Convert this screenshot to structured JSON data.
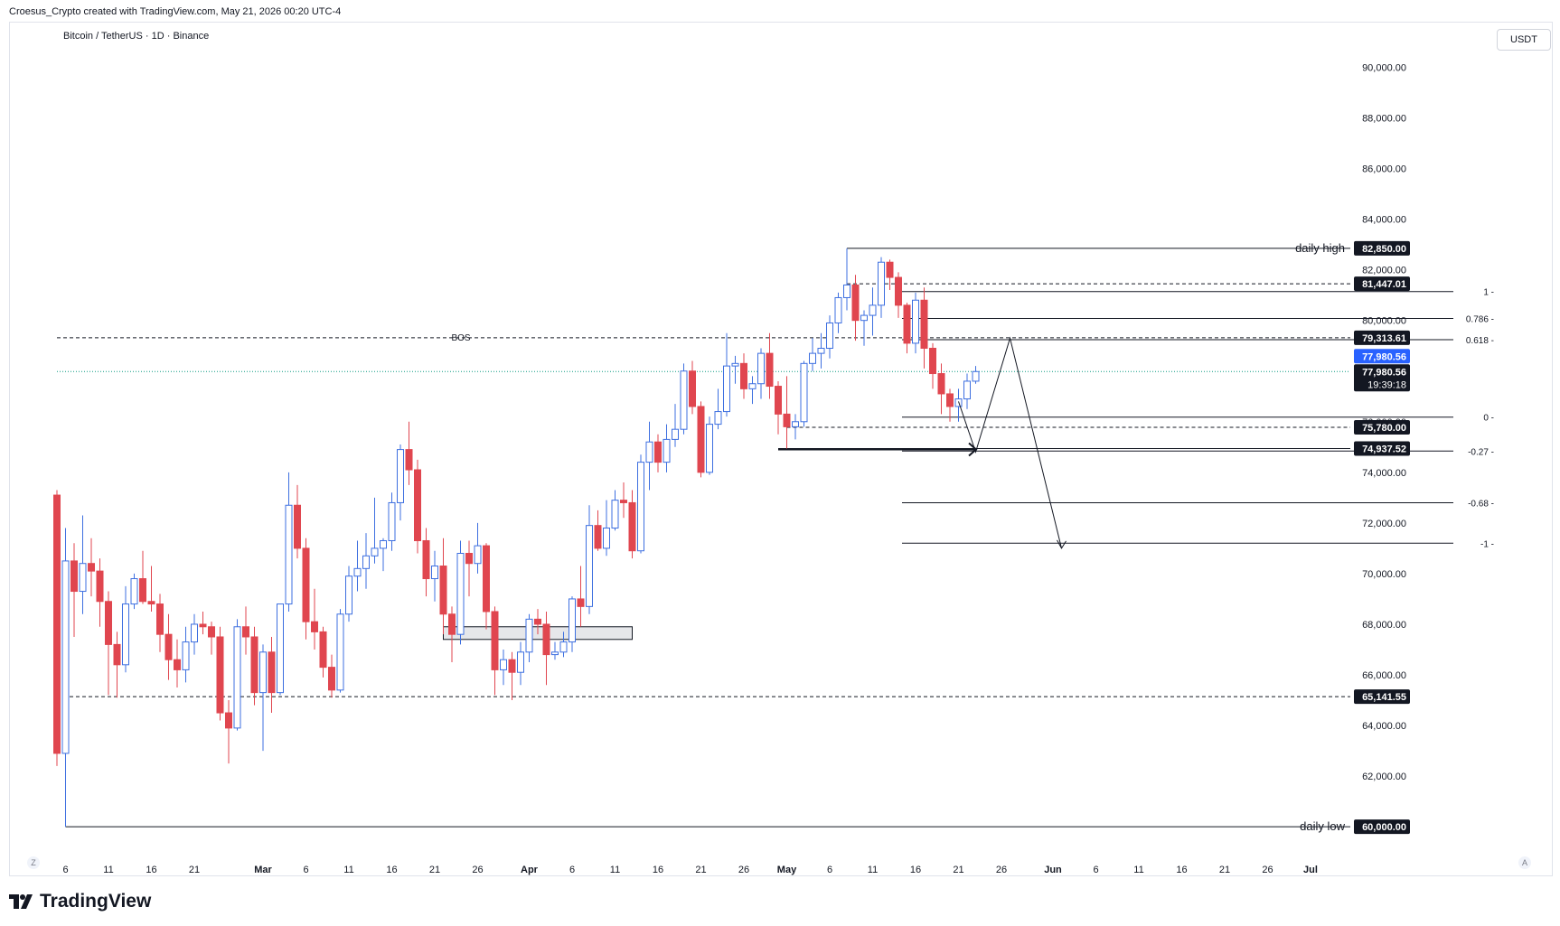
{
  "header": {
    "credit": "Croesus_Crypto created with TradingView.com, May 21, 2026 00:20 UTC-4",
    "symbol": "Bitcoin / TetherUS · 1D · Binance",
    "unit": "USDT"
  },
  "brand": {
    "name": "TradingView",
    "icon": "tradingview-logo-icon"
  },
  "corners": {
    "left": "Z",
    "right": "A"
  },
  "colors": {
    "up": "#3d6fe0",
    "down": "#e0464f",
    "ink": "#131722",
    "axis_text": "#131722",
    "dotted_current": "#089981",
    "price_tag_bg": "#131722",
    "current_tag_bg": "#2962ff"
  },
  "chart_data": {
    "type": "candlestick",
    "title": "Bitcoin / TetherUS · 1D · Binance",
    "ylim": [
      58400,
      91800
    ],
    "y_ticks": [
      62000,
      64000,
      66000,
      68000,
      70000,
      72000,
      74000,
      76000,
      78000,
      80000,
      82000,
      84000,
      86000,
      88000,
      90000
    ],
    "y_tick_labels": [
      "62,000.00",
      "64,000.00",
      "66,000.00",
      "68,000.00",
      "70,000.00",
      "72,000.00",
      "74,000.00",
      "76,000.00",
      "78,000.00",
      "80,000.00",
      "82,000.00",
      "84,000.00",
      "86,000.00",
      "88,000.00",
      "90,000.00"
    ],
    "x_start_date": "2026-02-05",
    "x_end_date": "2026-07-02",
    "x_ticks": [
      {
        "date": "2026-02-06",
        "label": "6",
        "bold": false
      },
      {
        "date": "2026-02-11",
        "label": "11",
        "bold": false
      },
      {
        "date": "2026-02-16",
        "label": "16",
        "bold": false
      },
      {
        "date": "2026-02-21",
        "label": "21",
        "bold": false
      },
      {
        "date": "2026-03-01",
        "label": "Mar",
        "bold": true
      },
      {
        "date": "2026-03-06",
        "label": "6",
        "bold": false
      },
      {
        "date": "2026-03-11",
        "label": "11",
        "bold": false
      },
      {
        "date": "2026-03-16",
        "label": "16",
        "bold": false
      },
      {
        "date": "2026-03-21",
        "label": "21",
        "bold": false
      },
      {
        "date": "2026-03-26",
        "label": "26",
        "bold": false
      },
      {
        "date": "2026-04-01",
        "label": "Apr",
        "bold": true
      },
      {
        "date": "2026-04-06",
        "label": "6",
        "bold": false
      },
      {
        "date": "2026-04-11",
        "label": "11",
        "bold": false
      },
      {
        "date": "2026-04-16",
        "label": "16",
        "bold": false
      },
      {
        "date": "2026-04-21",
        "label": "21",
        "bold": false
      },
      {
        "date": "2026-04-26",
        "label": "26",
        "bold": false
      },
      {
        "date": "2026-05-01",
        "label": "May",
        "bold": true
      },
      {
        "date": "2026-05-06",
        "label": "6",
        "bold": false
      },
      {
        "date": "2026-05-11",
        "label": "11",
        "bold": false
      },
      {
        "date": "2026-05-16",
        "label": "16",
        "bold": false
      },
      {
        "date": "2026-05-21",
        "label": "21",
        "bold": false
      },
      {
        "date": "2026-05-26",
        "label": "26",
        "bold": false
      },
      {
        "date": "2026-06-01",
        "label": "Jun",
        "bold": true
      },
      {
        "date": "2026-06-06",
        "label": "6",
        "bold": false
      },
      {
        "date": "2026-06-11",
        "label": "11",
        "bold": false
      },
      {
        "date": "2026-06-16",
        "label": "16",
        "bold": false
      },
      {
        "date": "2026-06-21",
        "label": "21",
        "bold": false
      },
      {
        "date": "2026-06-26",
        "label": "26",
        "bold": false
      },
      {
        "date": "2026-07-01",
        "label": "Jul",
        "bold": true
      }
    ],
    "candles": [
      {
        "d": "2026-02-05",
        "o": 73100,
        "h": 73300,
        "l": 62400,
        "c": 62900
      },
      {
        "d": "2026-02-06",
        "o": 62900,
        "h": 71800,
        "l": 60000,
        "c": 70500
      },
      {
        "d": "2026-02-07",
        "o": 70500,
        "h": 71200,
        "l": 67500,
        "c": 69300
      },
      {
        "d": "2026-02-08",
        "o": 69300,
        "h": 72300,
        "l": 68400,
        "c": 70400
      },
      {
        "d": "2026-02-09",
        "o": 70400,
        "h": 71400,
        "l": 69100,
        "c": 70100
      },
      {
        "d": "2026-02-10",
        "o": 70100,
        "h": 70600,
        "l": 67900,
        "c": 68900
      },
      {
        "d": "2026-02-11",
        "o": 68900,
        "h": 69300,
        "l": 65200,
        "c": 67200
      },
      {
        "d": "2026-02-12",
        "o": 67200,
        "h": 67700,
        "l": 65100,
        "c": 66400
      },
      {
        "d": "2026-02-13",
        "o": 66400,
        "h": 69500,
        "l": 66100,
        "c": 68800
      },
      {
        "d": "2026-02-14",
        "o": 68800,
        "h": 70000,
        "l": 68600,
        "c": 69800
      },
      {
        "d": "2026-02-15",
        "o": 69800,
        "h": 70900,
        "l": 68800,
        "c": 68900
      },
      {
        "d": "2026-02-16",
        "o": 68900,
        "h": 70300,
        "l": 68500,
        "c": 68800
      },
      {
        "d": "2026-02-17",
        "o": 68800,
        "h": 69200,
        "l": 66900,
        "c": 67600
      },
      {
        "d": "2026-02-18",
        "o": 67600,
        "h": 68400,
        "l": 65800,
        "c": 66600
      },
      {
        "d": "2026-02-19",
        "o": 66600,
        "h": 67400,
        "l": 65500,
        "c": 66200
      },
      {
        "d": "2026-02-20",
        "o": 66200,
        "h": 67900,
        "l": 65700,
        "c": 67300
      },
      {
        "d": "2026-02-21",
        "o": 67300,
        "h": 68400,
        "l": 66800,
        "c": 68000
      },
      {
        "d": "2026-02-22",
        "o": 68000,
        "h": 68500,
        "l": 67600,
        "c": 67900
      },
      {
        "d": "2026-02-23",
        "o": 67900,
        "h": 68100,
        "l": 66800,
        "c": 67500
      },
      {
        "d": "2026-02-24",
        "o": 67500,
        "h": 67900,
        "l": 64200,
        "c": 64500
      },
      {
        "d": "2026-02-25",
        "o": 64500,
        "h": 65000,
        "l": 62500,
        "c": 63900
      },
      {
        "d": "2026-02-26",
        "o": 63900,
        "h": 68200,
        "l": 63800,
        "c": 67900
      },
      {
        "d": "2026-02-27",
        "o": 67900,
        "h": 68700,
        "l": 66800,
        "c": 67500
      },
      {
        "d": "2026-02-28",
        "o": 67500,
        "h": 67900,
        "l": 64800,
        "c": 65300
      },
      {
        "d": "2026-03-01",
        "o": 65300,
        "h": 67200,
        "l": 63000,
        "c": 66900
      },
      {
        "d": "2026-03-02",
        "o": 66900,
        "h": 67500,
        "l": 64500,
        "c": 65300
      },
      {
        "d": "2026-03-03",
        "o": 65300,
        "h": 68800,
        "l": 65200,
        "c": 68800
      },
      {
        "d": "2026-03-04",
        "o": 68800,
        "h": 74000,
        "l": 68500,
        "c": 72700
      },
      {
        "d": "2026-03-05",
        "o": 72700,
        "h": 73500,
        "l": 70600,
        "c": 71000
      },
      {
        "d": "2026-03-06",
        "o": 71000,
        "h": 71400,
        "l": 67400,
        "c": 68100
      },
      {
        "d": "2026-03-07",
        "o": 68100,
        "h": 69400,
        "l": 67000,
        "c": 67700
      },
      {
        "d": "2026-03-08",
        "o": 67700,
        "h": 67900,
        "l": 65900,
        "c": 66300
      },
      {
        "d": "2026-03-09",
        "o": 66300,
        "h": 66800,
        "l": 65100,
        "c": 65400
      },
      {
        "d": "2026-03-10",
        "o": 65400,
        "h": 68600,
        "l": 65300,
        "c": 68400
      },
      {
        "d": "2026-03-11",
        "o": 68400,
        "h": 70300,
        "l": 68100,
        "c": 69900
      },
      {
        "d": "2026-03-12",
        "o": 69900,
        "h": 71300,
        "l": 69300,
        "c": 70200
      },
      {
        "d": "2026-03-13",
        "o": 70200,
        "h": 71600,
        "l": 69400,
        "c": 70700
      },
      {
        "d": "2026-03-14",
        "o": 70700,
        "h": 73000,
        "l": 70400,
        "c": 71000
      },
      {
        "d": "2026-03-15",
        "o": 71000,
        "h": 71400,
        "l": 70100,
        "c": 71300
      },
      {
        "d": "2026-03-16",
        "o": 71300,
        "h": 73200,
        "l": 70900,
        "c": 72800
      },
      {
        "d": "2026-03-17",
        "o": 72800,
        "h": 75100,
        "l": 72100,
        "c": 74900
      },
      {
        "d": "2026-03-18",
        "o": 74900,
        "h": 76000,
        "l": 73500,
        "c": 74100
      },
      {
        "d": "2026-03-19",
        "o": 74100,
        "h": 74500,
        "l": 70800,
        "c": 71300
      },
      {
        "d": "2026-03-20",
        "o": 71300,
        "h": 71800,
        "l": 69100,
        "c": 69800
      },
      {
        "d": "2026-03-21",
        "o": 69800,
        "h": 70900,
        "l": 68900,
        "c": 70300
      },
      {
        "d": "2026-03-22",
        "o": 70300,
        "h": 71400,
        "l": 67600,
        "c": 68400
      },
      {
        "d": "2026-03-23",
        "o": 68400,
        "h": 68700,
        "l": 66500,
        "c": 67600
      },
      {
        "d": "2026-03-24",
        "o": 67600,
        "h": 71300,
        "l": 67200,
        "c": 70800
      },
      {
        "d": "2026-03-25",
        "o": 70800,
        "h": 71300,
        "l": 69100,
        "c": 70400
      },
      {
        "d": "2026-03-26",
        "o": 70400,
        "h": 72000,
        "l": 70000,
        "c": 71100
      },
      {
        "d": "2026-03-27",
        "o": 71100,
        "h": 71200,
        "l": 67800,
        "c": 68500
      },
      {
        "d": "2026-03-28",
        "o": 68500,
        "h": 68700,
        "l": 65200,
        "c": 66200
      },
      {
        "d": "2026-03-29",
        "o": 66200,
        "h": 67000,
        "l": 65600,
        "c": 66600
      },
      {
        "d": "2026-03-30",
        "o": 66600,
        "h": 66900,
        "l": 65000,
        "c": 66100
      },
      {
        "d": "2026-03-31",
        "o": 66100,
        "h": 67300,
        "l": 65600,
        "c": 66900
      },
      {
        "d": "2026-04-01",
        "o": 66900,
        "h": 68400,
        "l": 66500,
        "c": 68200
      },
      {
        "d": "2026-04-02",
        "o": 68200,
        "h": 68600,
        "l": 67600,
        "c": 68000
      },
      {
        "d": "2026-04-03",
        "o": 68000,
        "h": 68500,
        "l": 65600,
        "c": 66800
      },
      {
        "d": "2026-04-04",
        "o": 66800,
        "h": 67300,
        "l": 66600,
        "c": 66900
      },
      {
        "d": "2026-04-05",
        "o": 66900,
        "h": 67700,
        "l": 66700,
        "c": 67300
      },
      {
        "d": "2026-04-06",
        "o": 67300,
        "h": 69100,
        "l": 66900,
        "c": 69000
      },
      {
        "d": "2026-04-07",
        "o": 69000,
        "h": 70300,
        "l": 67900,
        "c": 68700
      },
      {
        "d": "2026-04-08",
        "o": 68700,
        "h": 72700,
        "l": 68400,
        "c": 71900
      },
      {
        "d": "2026-04-09",
        "o": 71900,
        "h": 72500,
        "l": 70900,
        "c": 71000
      },
      {
        "d": "2026-04-10",
        "o": 71000,
        "h": 72900,
        "l": 70700,
        "c": 71800
      },
      {
        "d": "2026-04-11",
        "o": 71800,
        "h": 73300,
        "l": 71700,
        "c": 72900
      },
      {
        "d": "2026-04-12",
        "o": 72900,
        "h": 73600,
        "l": 72200,
        "c": 72800
      },
      {
        "d": "2026-04-13",
        "o": 72800,
        "h": 73300,
        "l": 70600,
        "c": 70900
      },
      {
        "d": "2026-04-14",
        "o": 70900,
        "h": 74700,
        "l": 70800,
        "c": 74400
      },
      {
        "d": "2026-04-15",
        "o": 74400,
        "h": 76000,
        "l": 73300,
        "c": 75200
      },
      {
        "d": "2026-04-16",
        "o": 75200,
        "h": 75500,
        "l": 74000,
        "c": 74400
      },
      {
        "d": "2026-04-17",
        "o": 74400,
        "h": 75900,
        "l": 74000,
        "c": 75300
      },
      {
        "d": "2026-04-18",
        "o": 75300,
        "h": 76700,
        "l": 75000,
        "c": 75700
      },
      {
        "d": "2026-04-19",
        "o": 75700,
        "h": 78300,
        "l": 75500,
        "c": 78000
      },
      {
        "d": "2026-04-20",
        "o": 78000,
        "h": 78400,
        "l": 76300,
        "c": 76600
      },
      {
        "d": "2026-04-21",
        "o": 76600,
        "h": 76800,
        "l": 73800,
        "c": 74000
      },
      {
        "d": "2026-04-22",
        "o": 74000,
        "h": 76200,
        "l": 73900,
        "c": 75900
      },
      {
        "d": "2026-04-23",
        "o": 75900,
        "h": 77300,
        "l": 75700,
        "c": 76400
      },
      {
        "d": "2026-04-24",
        "o": 76400,
        "h": 79500,
        "l": 76200,
        "c": 78200
      },
      {
        "d": "2026-04-25",
        "o": 78200,
        "h": 78600,
        "l": 77500,
        "c": 78300
      },
      {
        "d": "2026-04-26",
        "o": 78300,
        "h": 78700,
        "l": 76900,
        "c": 77300
      },
      {
        "d": "2026-04-27",
        "o": 77300,
        "h": 77800,
        "l": 76700,
        "c": 77500
      },
      {
        "d": "2026-04-28",
        "o": 77500,
        "h": 78900,
        "l": 76900,
        "c": 78700
      },
      {
        "d": "2026-04-29",
        "o": 78700,
        "h": 79500,
        "l": 76900,
        "c": 77400
      },
      {
        "d": "2026-04-30",
        "o": 77400,
        "h": 77600,
        "l": 75500,
        "c": 76300
      },
      {
        "d": "2026-05-01",
        "o": 76300,
        "h": 77800,
        "l": 74900,
        "c": 75800
      },
      {
        "d": "2026-05-02",
        "o": 75800,
        "h": 76300,
        "l": 75300,
        "c": 76000
      },
      {
        "d": "2026-05-03",
        "o": 76000,
        "h": 78400,
        "l": 75800,
        "c": 78300
      },
      {
        "d": "2026-05-04",
        "o": 78300,
        "h": 79300,
        "l": 78000,
        "c": 78700
      },
      {
        "d": "2026-05-05",
        "o": 78700,
        "h": 79500,
        "l": 78100,
        "c": 78900
      },
      {
        "d": "2026-05-06",
        "o": 78900,
        "h": 80200,
        "l": 78500,
        "c": 79900
      },
      {
        "d": "2026-05-07",
        "o": 79900,
        "h": 81100,
        "l": 79500,
        "c": 80900
      },
      {
        "d": "2026-05-08",
        "o": 80900,
        "h": 82850,
        "l": 80400,
        "c": 81400
      },
      {
        "d": "2026-05-09",
        "o": 81400,
        "h": 81800,
        "l": 79200,
        "c": 80000
      },
      {
        "d": "2026-05-10",
        "o": 80000,
        "h": 80400,
        "l": 79000,
        "c": 80200
      },
      {
        "d": "2026-05-11",
        "o": 80200,
        "h": 81300,
        "l": 79400,
        "c": 80600
      },
      {
        "d": "2026-05-12",
        "o": 80600,
        "h": 82500,
        "l": 80100,
        "c": 82300
      },
      {
        "d": "2026-05-13",
        "o": 82300,
        "h": 82400,
        "l": 81200,
        "c": 81700
      },
      {
        "d": "2026-05-14",
        "o": 81700,
        "h": 81900,
        "l": 80100,
        "c": 80600
      },
      {
        "d": "2026-05-15",
        "o": 80600,
        "h": 80700,
        "l": 78700,
        "c": 79100
      },
      {
        "d": "2026-05-16",
        "o": 79100,
        "h": 81100,
        "l": 78700,
        "c": 80800
      },
      {
        "d": "2026-05-17",
        "o": 80800,
        "h": 81300,
        "l": 78100,
        "c": 78900
      },
      {
        "d": "2026-05-18",
        "o": 78900,
        "h": 79100,
        "l": 77300,
        "c": 77900
      },
      {
        "d": "2026-05-19",
        "o": 77900,
        "h": 78300,
        "l": 76300,
        "c": 77100
      },
      {
        "d": "2026-05-20",
        "o": 77100,
        "h": 77300,
        "l": 76000,
        "c": 76600
      },
      {
        "d": "2026-05-21",
        "o": 76600,
        "h": 77300,
        "l": 76000,
        "c": 76900
      },
      {
        "d": "2026-05-22",
        "o": 76900,
        "h": 77900,
        "l": 76500,
        "c": 77600
      },
      {
        "d": "2026-05-23",
        "o": 77600,
        "h": 78200,
        "l": 77500,
        "c": 77980
      }
    ],
    "levels": [
      {
        "price": 82850,
        "label": "daily high",
        "tag": "82,850.00",
        "style": "solid",
        "from": "2026-05-08"
      },
      {
        "price": 81447.01,
        "label": "",
        "tag": "81,447.01",
        "style": "dashed",
        "from": "2026-05-08"
      },
      {
        "price": 79313.61,
        "label": "BOS",
        "tag": "79,313.61",
        "style": "dashed",
        "from": "2026-02-05"
      },
      {
        "price": 75780,
        "label": "",
        "tag": "75,780.00",
        "style": "dashed",
        "from": "2026-05-01"
      },
      {
        "price": 74937.52,
        "label": "",
        "tag": "74,937.52",
        "style": "solid",
        "from": "2026-04-30"
      },
      {
        "price": 65141.55,
        "label": "",
        "tag": "65,141.55",
        "style": "dashed",
        "from": "2026-02-05"
      },
      {
        "price": 60000,
        "label": "daily low",
        "tag": "60,000.00",
        "style": "solid",
        "from": "2026-02-06"
      }
    ],
    "fib_levels": [
      {
        "ratio": "1",
        "price": 81140
      },
      {
        "ratio": "0.786",
        "price": 80080
      },
      {
        "ratio": "0.618",
        "price": 79240
      },
      {
        "ratio": "0",
        "price": 76180
      },
      {
        "ratio": "-0.27",
        "price": 74840
      },
      {
        "ratio": "-0.68",
        "price": 72800
      },
      {
        "ratio": "-1",
        "price": 71200
      }
    ],
    "fib_start_date": "2026-05-16",
    "current_price": {
      "tag": "77,980.56",
      "price": 77980.56,
      "countdown": "19:39:18"
    },
    "demand_zone": {
      "from": "2026-03-22",
      "to": "2026-04-13",
      "low": 67400,
      "high": 67900
    },
    "projection_path": [
      {
        "d": "2026-05-21",
        "p": 76800
      },
      {
        "d": "2026-05-23",
        "p": 74800
      },
      {
        "d": "2026-05-27",
        "p": 79300
      },
      {
        "d": "2026-06-02",
        "p": 71000
      }
    ],
    "arrow_right": {
      "from": "2026-04-30",
      "to": "2026-05-22",
      "price": 74937.52
    }
  }
}
